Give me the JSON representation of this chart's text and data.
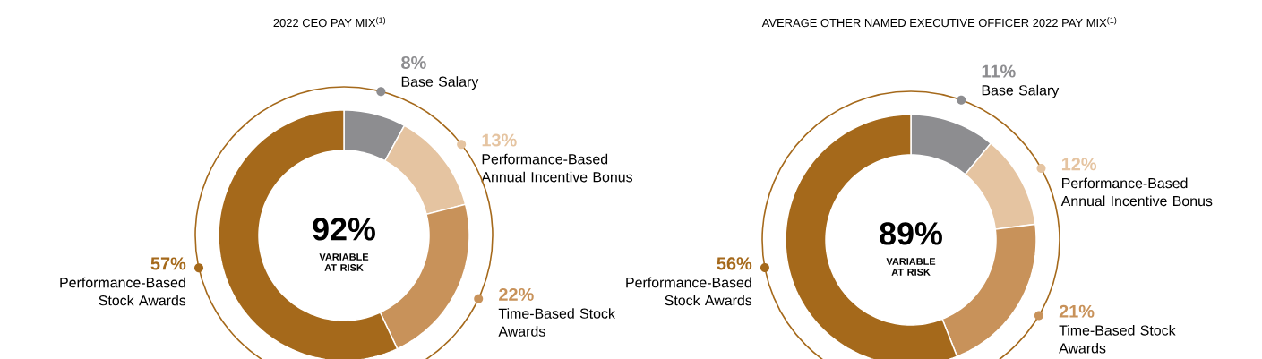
{
  "chart_data": [
    {
      "type": "donut",
      "title": "2022 CEO PAY MIX$^{(1)}$",
      "categories": [
        "Base Salary",
        "Performance-Based Annual Incentive Bonus",
        "Time-Based Stock Awards",
        "Performance-Based Stock Awards"
      ],
      "values": [
        8,
        13,
        22,
        57
      ],
      "colors": [
        "#8d8d90",
        "#e5c4a1",
        "#c8925a",
        "#a5691b"
      ],
      "value_labels": [
        "8%",
        "13%",
        "22%",
        "57%"
      ],
      "annotations": [
        "92%",
        "VARIABLE AT RISK"
      ]
    },
    {
      "type": "donut",
      "title": "AVERAGE OTHER NAMED EXECUTIVE OFFICER 2022 PAY MIX$^{(1)}$",
      "categories": [
        "Base Salary",
        "Performance-Based Annual Incentive Bonus",
        "Time-Based Stock Awards",
        "Performance-Based Stock Awards"
      ],
      "values": [
        11,
        12,
        21,
        56
      ],
      "colors": [
        "#8d8d90",
        "#e5c4a1",
        "#c8925a",
        "#a5691b"
      ],
      "value_labels": [
        "11%",
        "12%",
        "21%",
        "56%"
      ],
      "annotations": [
        "89%",
        "VARIABLE AT RISK"
      ]
    }
  ]
}
